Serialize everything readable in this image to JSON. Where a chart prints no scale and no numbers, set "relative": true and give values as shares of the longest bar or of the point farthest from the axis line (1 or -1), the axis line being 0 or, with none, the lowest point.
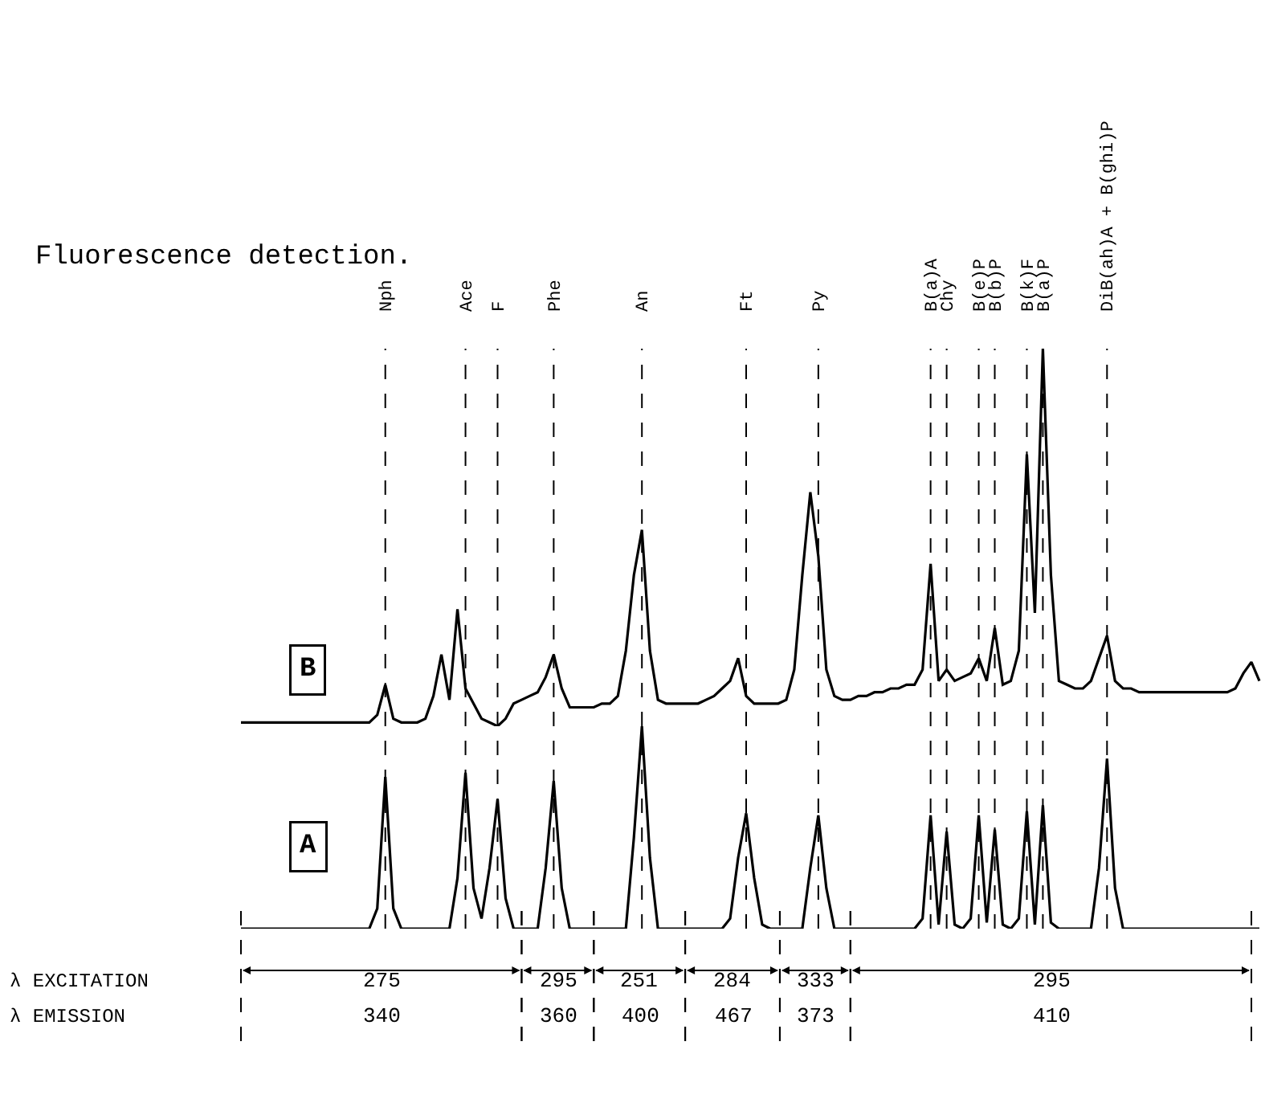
{
  "chart_data": [
    {
      "type": "line",
      "title": "Fluorescence detection.",
      "relative": true,
      "tick_labels": "x",
      "categories": [
        null,
        null,
        null,
        null,
        null,
        null,
        null,
        null,
        null,
        null,
        null,
        null,
        null,
        null,
        null,
        null,
        null,
        null,
        "Nph",
        null,
        null,
        null,
        null,
        null,
        null,
        null,
        null,
        null,
        "Ace",
        null,
        null,
        null,
        "F",
        null,
        null,
        null,
        null,
        null,
        null,
        "Phe",
        null,
        null,
        null,
        null,
        null,
        null,
        null,
        null,
        null,
        null,
        "An",
        null,
        null,
        null,
        null,
        null,
        null,
        null,
        null,
        null,
        null,
        null,
        null,
        "Ft",
        null,
        null,
        null,
        null,
        null,
        null,
        null,
        null,
        "Py",
        null,
        null,
        null,
        null,
        null,
        null,
        null,
        null,
        null,
        null,
        null,
        null,
        null,
        "B(a)A",
        null,
        "Chy",
        null,
        null,
        null,
        "B(e)P",
        null,
        "B(b)P",
        null,
        null,
        null,
        "B(k)F",
        null,
        "B(a)P",
        null,
        null,
        null,
        null,
        null,
        null,
        null,
        "DiB(ah)A + B(ghi)P",
        null,
        null,
        null,
        null,
        null,
        null,
        null,
        null,
        null,
        null,
        null,
        null,
        null,
        null,
        null,
        null,
        null,
        null,
        null
      ],
      "series": [
        {
          "name": "B",
          "color": "#000000",
          "values": [
            0.01,
            0.01,
            0.01,
            0.01,
            0.01,
            0.01,
            0.01,
            0.01,
            0.01,
            0.01,
            0.01,
            0.01,
            0.01,
            0.01,
            0.01,
            0.01,
            0.01,
            0.03,
            0.11,
            0.02,
            0.01,
            0.01,
            0.01,
            0.02,
            0.08,
            0.19,
            0.07,
            0.31,
            0.1,
            0.06,
            0.02,
            0.01,
            0.0,
            0.02,
            0.06,
            0.07,
            0.08,
            0.09,
            0.13,
            0.19,
            0.1,
            0.05,
            0.05,
            0.05,
            0.05,
            0.06,
            0.06,
            0.08,
            0.2,
            0.4,
            0.52,
            0.2,
            0.07,
            0.06,
            0.06,
            0.06,
            0.06,
            0.06,
            0.07,
            0.08,
            0.1,
            0.12,
            0.18,
            0.08,
            0.06,
            0.06,
            0.06,
            0.06,
            0.07,
            0.15,
            0.4,
            0.62,
            0.45,
            0.15,
            0.08,
            0.07,
            0.07,
            0.08,
            0.08,
            0.09,
            0.09,
            0.1,
            0.1,
            0.11,
            0.11,
            0.15,
            0.43,
            0.12,
            0.15,
            0.12,
            0.13,
            0.14,
            0.18,
            0.12,
            0.26,
            0.11,
            0.12,
            0.2,
            0.72,
            0.3,
            1.0,
            0.4,
            0.12,
            0.11,
            0.1,
            0.1,
            0.12,
            0.18,
            0.24,
            0.12,
            0.1,
            0.1,
            0.09,
            0.09,
            0.09,
            0.09,
            0.09,
            0.09,
            0.09,
            0.09,
            0.09,
            0.09,
            0.09,
            0.09,
            0.1,
            0.14,
            0.17,
            0.12
          ]
        }
      ],
      "grid": "x"
    },
    {
      "type": "line",
      "relative": true,
      "tick_labels": false,
      "categories": [
        null,
        null,
        null,
        null,
        null,
        null,
        null,
        null,
        null,
        null,
        null,
        null,
        null,
        null,
        null,
        null,
        null,
        null,
        null,
        null,
        null,
        null,
        null,
        null,
        null,
        null,
        null,
        null,
        null,
        null,
        null,
        null,
        null,
        null,
        null,
        null,
        null,
        null,
        null,
        null,
        null,
        null,
        null,
        null,
        null,
        null,
        null,
        null,
        null,
        null,
        null,
        null,
        null,
        null,
        null,
        null,
        null,
        null,
        null,
        null,
        null,
        null,
        null,
        null,
        null,
        null,
        null,
        null,
        null,
        null,
        null,
        null,
        null,
        null,
        null,
        null,
        null,
        null,
        null,
        null,
        null,
        null,
        null,
        null,
        null,
        null,
        null,
        null,
        null,
        null,
        null,
        null,
        null,
        null,
        null,
        null,
        null,
        null,
        null,
        null,
        null,
        null,
        null,
        null,
        null,
        null,
        null,
        null,
        null,
        null,
        null,
        null,
        null,
        null,
        null,
        null,
        null,
        null,
        null,
        null,
        null,
        null,
        null,
        null,
        null,
        null,
        null,
        null
      ],
      "series": [
        {
          "name": "A",
          "color": "#000000",
          "values": [
            0,
            0,
            0,
            0,
            0,
            0,
            0,
            0,
            0,
            0,
            0,
            0,
            0,
            0,
            0,
            0,
            0,
            0.1,
            0.75,
            0.1,
            0,
            0,
            0,
            0,
            0,
            0,
            0,
            0.25,
            0.77,
            0.2,
            0.05,
            0.3,
            0.64,
            0.15,
            0,
            0,
            0,
            0,
            0.3,
            0.73,
            0.2,
            0,
            0,
            0,
            0,
            0,
            0,
            0,
            0,
            0.45,
            1,
            0.35,
            0,
            0,
            0,
            0,
            0,
            0,
            0,
            0,
            0,
            0.05,
            0.35,
            0.57,
            0.25,
            0.02,
            0,
            0,
            0,
            0,
            0,
            0.3,
            0.56,
            0.2,
            0,
            0,
            0,
            0,
            0,
            0,
            0,
            0,
            0,
            0,
            0,
            0.05,
            0.56,
            0.02,
            0.48,
            0.02,
            0,
            0.05,
            0.56,
            0.03,
            0.49,
            0.02,
            0,
            0.05,
            0.58,
            0.02,
            0.61,
            0.03,
            0,
            0,
            0,
            0,
            0,
            0.3,
            0.84,
            0.2,
            0,
            0,
            0,
            0,
            0,
            0,
            0,
            0,
            0,
            0,
            0,
            0,
            0,
            0,
            0,
            0,
            0,
            0
          ]
        }
      ],
      "grid": "x",
      "annotations": [
        "λ EXCITATION",
        "λ EMISSION",
        "275",
        "295",
        "251",
        "284",
        "333",
        "295",
        "340",
        "360",
        "400",
        "467",
        "373",
        "410"
      ]
    }
  ]
}
